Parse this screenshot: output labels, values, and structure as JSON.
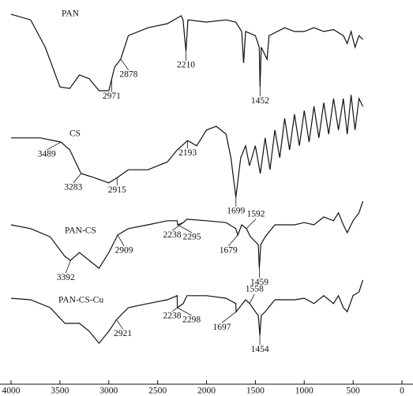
{
  "chart_data": {
    "type": "line",
    "xlim": [
      4000,
      0
    ],
    "xticks": [
      4000,
      3500,
      3000,
      2500,
      2000,
      1500,
      1000,
      500,
      0
    ],
    "ylim": [
      0,
      100
    ],
    "color": "#111111",
    "series": [
      {
        "name": "PAN",
        "x": [
          4000,
          3800,
          3650,
          3500,
          3400,
          3300,
          3200,
          3100,
          3000,
          2940,
          2878,
          2800,
          2600,
          2400,
          2260,
          2240,
          2210,
          2190,
          2000,
          1800,
          1700,
          1640,
          1620,
          1600,
          1500,
          1460,
          1452,
          1440,
          1380,
          1360,
          1200,
          1100,
          1000,
          900,
          800,
          700,
          600,
          560,
          520,
          480,
          440,
          400
        ],
        "values": [
          98.3,
          96.8,
          89.5,
          78.9,
          78.5,
          82.1,
          81.1,
          77.9,
          77.9,
          84.2,
          86.3,
          92.6,
          94.7,
          95.8,
          97.9,
          96.8,
          88.4,
          96.8,
          96.2,
          96.8,
          96.2,
          93.7,
          85.3,
          93.7,
          92.6,
          89.5,
          78.9,
          89.5,
          86.3,
          92.6,
          94.7,
          93.7,
          93.7,
          94.7,
          93.7,
          94.2,
          92.6,
          90.5,
          93.7,
          89.5,
          92.6,
          91.6
        ],
        "annotations": [
          2971,
          2878,
          2210,
          1452
        ]
      },
      {
        "name": "CS",
        "x": [
          4000,
          3700,
          3489,
          3400,
          3283,
          3150,
          3000,
          2915,
          2800,
          2600,
          2400,
          2300,
          2193,
          2100,
          2000,
          1900,
          1800,
          1750,
          1699,
          1650,
          1600,
          1560,
          1500,
          1450,
          1400,
          1350,
          1300,
          1250,
          1200,
          1150,
          1100,
          1050,
          1000,
          950,
          900,
          850,
          800,
          750,
          700,
          650,
          600,
          560,
          520,
          480,
          440,
          400
        ],
        "values": [
          65.3,
          65.3,
          64.2,
          62.1,
          55.8,
          54.7,
          53.3,
          54.7,
          56.8,
          56.8,
          58.9,
          62.1,
          64.6,
          63.2,
          67.4,
          68.4,
          66.3,
          60,
          49.5,
          60,
          63.2,
          57.9,
          63.2,
          55.8,
          65.3,
          56.8,
          67.4,
          60,
          70.5,
          62.1,
          71.6,
          63.2,
          72.6,
          64.2,
          73.7,
          65.3,
          74.7,
          66.3,
          75.8,
          67.4,
          75.8,
          66.3,
          76.8,
          67.4,
          75.8,
          73.7
        ],
        "annotations": [
          3489,
          3283,
          2915,
          2193,
          1699
        ]
      },
      {
        "name": "PAN-CS",
        "x": [
          4000,
          3800,
          3600,
          3450,
          3392,
          3300,
          3200,
          3100,
          3000,
          2909,
          2800,
          2600,
          2400,
          2300,
          2295,
          2238,
          2200,
          2000,
          1800,
          1700,
          1679,
          1640,
          1592,
          1550,
          1470,
          1459,
          1445,
          1400,
          1300,
          1100,
          1000,
          900,
          800,
          700,
          650,
          600,
          560,
          500,
          440,
          400
        ],
        "values": [
          42.1,
          41.1,
          38.9,
          33.7,
          32.6,
          34.7,
          32.6,
          30.5,
          34.7,
          39.4,
          41.1,
          42.1,
          43.2,
          43.2,
          42.1,
          42.7,
          43.6,
          43.2,
          42.7,
          41.1,
          39.4,
          42.1,
          41.1,
          38.9,
          36.8,
          30.5,
          36.8,
          38.9,
          42.1,
          42.1,
          42.7,
          42.1,
          44.2,
          43.2,
          45.3,
          42.1,
          40,
          43.2,
          45.3,
          48.4
        ],
        "annotations": [
          3392,
          2909,
          2295,
          2238,
          1679,
          1592,
          1459
        ]
      },
      {
        "name": "PAN-CS-Cu",
        "x": [
          4000,
          3800,
          3600,
          3450,
          3300,
          3200,
          3100,
          3000,
          2921,
          2800,
          2600,
          2400,
          2300,
          2298,
          2238,
          2200,
          2000,
          1800,
          1700,
          1697,
          1600,
          1558,
          1500,
          1470,
          1454,
          1440,
          1400,
          1300,
          1100,
          1000,
          900,
          800,
          700,
          650,
          600,
          560,
          500,
          440,
          400
        ],
        "values": [
          22.5,
          22.1,
          20,
          15.8,
          15.8,
          13.7,
          10.5,
          13.7,
          16.8,
          20,
          21.1,
          22.1,
          23.2,
          20,
          21.1,
          23.2,
          23.2,
          22.5,
          21.1,
          18.9,
          22.1,
          21.1,
          18.9,
          17.9,
          12.6,
          17.9,
          18.9,
          22.1,
          22.1,
          22.5,
          21.1,
          23.2,
          21.1,
          23.2,
          20,
          18.9,
          23.2,
          24.2,
          27.4
        ],
        "annotations": [
          2921,
          2298,
          2238,
          1697,
          1558,
          1454
        ]
      }
    ]
  }
}
